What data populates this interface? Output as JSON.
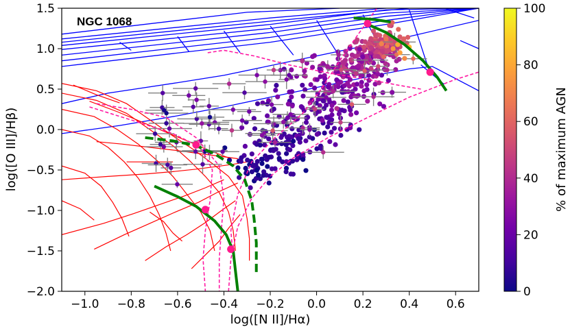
{
  "chart_data": {
    "type": "scatter",
    "annotation": "NGC 1068",
    "xlabel": "log([N II]/Hα)",
    "ylabel": "log([O III]/Hβ)",
    "xlim": [
      -1.1,
      0.7
    ],
    "ylim": [
      -2.0,
      1.5
    ],
    "xticks": [
      -1.0,
      -0.8,
      -0.6,
      -0.4,
      -0.2,
      0.0,
      0.2,
      0.4,
      0.6
    ],
    "xtick_labels": [
      "−1.0",
      "−0.8",
      "−0.6",
      "−0.4",
      "−0.2",
      "0.0",
      "0.2",
      "0.4",
      "0.6"
    ],
    "yticks": [
      -2.0,
      -1.5,
      -1.0,
      -0.5,
      0.0,
      0.5,
      1.0,
      1.5
    ],
    "ytick_labels": [
      "−2.0",
      "−1.5",
      "−1.0",
      "−0.5",
      "0.0",
      "0.5",
      "1.0",
      "1.5"
    ],
    "colorbar": {
      "label": "% of maximum AGN",
      "range": [
        0,
        100
      ],
      "ticks": [
        0,
        20,
        40,
        60,
        80,
        100
      ],
      "tick_labels": [
        "0",
        "20",
        "40",
        "60",
        "80",
        "100"
      ],
      "colormap": "plasma",
      "stops": [
        "#0d0887",
        "#46039f",
        "#7201a8",
        "#9c179e",
        "#bd3786",
        "#d8576b",
        "#ed7953",
        "#fb9f3a",
        "#fdca26",
        "#f0f921"
      ]
    },
    "agn_grid": {
      "color": "#0000ff",
      "long_lines": [
        [
          [
            -1.1,
            0.78
          ],
          [
            -0.2,
            1.08
          ],
          [
            0.3,
            1.3
          ],
          [
            0.7,
            1.5
          ]
        ],
        [
          [
            -1.1,
            0.85
          ],
          [
            -0.2,
            1.14
          ],
          [
            0.3,
            1.35
          ],
          [
            0.7,
            1.5
          ]
        ],
        [
          [
            -1.1,
            0.92
          ],
          [
            -0.2,
            1.2
          ],
          [
            0.3,
            1.4
          ],
          [
            0.7,
            1.5
          ]
        ],
        [
          [
            -1.1,
            0.99
          ],
          [
            -0.2,
            1.25
          ],
          [
            0.3,
            1.44
          ],
          [
            0.7,
            1.5
          ]
        ],
        [
          [
            -1.1,
            1.04
          ],
          [
            -0.2,
            1.3
          ],
          [
            0.3,
            1.48
          ],
          [
            0.7,
            1.5
          ]
        ],
        [
          [
            -1.1,
            1.08
          ],
          [
            -0.2,
            1.34
          ],
          [
            0.4,
            1.5
          ]
        ],
        [
          [
            -1.1,
            1.12
          ],
          [
            -0.2,
            1.38
          ],
          [
            0.3,
            1.5
          ]
        ],
        [
          [
            -1.1,
            1.18
          ],
          [
            -0.3,
            1.45
          ],
          [
            0.1,
            1.5
          ]
        ],
        [
          [
            -1.1,
            0.32
          ],
          [
            -0.9,
            0.45
          ],
          [
            -0.6,
            0.58
          ],
          [
            -0.4,
            0.67
          ],
          [
            -0.2,
            0.79
          ],
          [
            0.0,
            0.91
          ],
          [
            0.2,
            1.03
          ],
          [
            0.4,
            1.15
          ],
          [
            0.7,
            1.35
          ]
        ],
        [
          [
            -1.1,
            -0.05
          ],
          [
            -0.85,
            0.05
          ],
          [
            -0.6,
            0.17
          ],
          [
            -0.4,
            0.28
          ],
          [
            -0.2,
            0.4
          ],
          [
            0.0,
            0.52
          ],
          [
            0.2,
            0.64
          ],
          [
            0.4,
            0.75
          ],
          [
            0.5,
            0.78
          ],
          [
            0.7,
            0.48
          ]
        ]
      ],
      "cross_lines": [
        [
          [
            -0.85,
            1.08
          ],
          [
            -0.8,
            0.98
          ]
        ],
        [
          [
            -0.6,
            1.15
          ],
          [
            -0.55,
            0.96
          ]
        ],
        [
          [
            -0.4,
            1.22
          ],
          [
            -0.33,
            0.95
          ]
        ],
        [
          [
            -0.2,
            1.28
          ],
          [
            -0.1,
            0.92
          ]
        ],
        [
          [
            0.0,
            1.35
          ],
          [
            0.1,
            0.9
          ]
        ],
        [
          [
            0.2,
            1.42
          ],
          [
            0.3,
            0.88
          ]
        ],
        [
          [
            0.4,
            1.48
          ],
          [
            0.48,
            0.78
          ]
        ],
        [
          [
            0.55,
            1.5
          ],
          [
            0.68,
            1.38
          ]
        ],
        [
          [
            0.45,
            0.8
          ],
          [
            0.55,
            0.56
          ]
        ],
        [
          [
            0.62,
            1.1
          ],
          [
            0.7,
            1.0
          ]
        ]
      ]
    },
    "sf_grid": {
      "color": "#ff0000",
      "curves": [
        [
          [
            -1.1,
            0.57
          ],
          [
            -0.95,
            0.48
          ],
          [
            -0.82,
            0.32
          ],
          [
            -0.72,
            0.12
          ],
          [
            -0.62,
            -0.08
          ],
          [
            -0.53,
            -0.25
          ],
          [
            -0.45,
            -0.42
          ],
          [
            -0.38,
            -0.58
          ],
          [
            -0.32,
            -0.82
          ],
          [
            -0.3,
            -1.1
          ],
          [
            -0.29,
            -1.35
          ],
          [
            -0.29,
            -1.62
          ]
        ],
        [
          [
            -1.1,
            0.45
          ],
          [
            -0.95,
            0.36
          ],
          [
            -0.82,
            0.2
          ],
          [
            -0.72,
            0.0
          ],
          [
            -0.62,
            -0.2
          ],
          [
            -0.55,
            -0.38
          ],
          [
            -0.48,
            -0.58
          ],
          [
            -0.42,
            -0.78
          ],
          [
            -0.38,
            -1.02
          ],
          [
            -0.36,
            -1.25
          ],
          [
            -0.35,
            -1.5
          ]
        ],
        [
          [
            -1.1,
            0.25
          ],
          [
            -0.96,
            0.16
          ],
          [
            -0.86,
            0.0
          ],
          [
            -0.77,
            -0.18
          ],
          [
            -0.69,
            -0.38
          ],
          [
            -0.62,
            -0.58
          ],
          [
            -0.56,
            -0.8
          ],
          [
            -0.5,
            -1.02
          ],
          [
            -0.46,
            -1.25
          ],
          [
            -0.44,
            -1.5
          ]
        ],
        [
          [
            -1.1,
            0.0
          ],
          [
            -0.98,
            -0.08
          ],
          [
            -0.9,
            -0.22
          ],
          [
            -0.83,
            -0.4
          ],
          [
            -0.77,
            -0.6
          ],
          [
            -0.72,
            -0.82
          ],
          [
            -0.68,
            -1.05
          ],
          [
            -0.65,
            -1.28
          ],
          [
            -0.63,
            -1.5
          ]
        ],
        [
          [
            -1.1,
            -0.45
          ],
          [
            -1.0,
            -0.54
          ],
          [
            -0.93,
            -0.7
          ],
          [
            -0.88,
            -0.9
          ],
          [
            -0.84,
            -1.1
          ],
          [
            -0.81,
            -1.32
          ]
        ],
        [
          [
            -1.1,
            -0.88
          ],
          [
            -1.02,
            -0.98
          ],
          [
            -0.96,
            -1.12
          ]
        ]
      ],
      "spokes": [
        [
          [
            -1.1,
            -0.62
          ],
          [
            -0.9,
            -0.58
          ],
          [
            -0.74,
            -0.55
          ],
          [
            -0.62,
            -0.52
          ],
          [
            -0.52,
            -0.49
          ],
          [
            -0.44,
            -0.46
          ],
          [
            -0.36,
            -0.43
          ],
          [
            -0.3,
            -0.4
          ]
        ],
        [
          [
            -1.1,
            -1.3
          ],
          [
            -0.92,
            -1.16
          ],
          [
            -0.79,
            -1.04
          ],
          [
            -0.68,
            -0.93
          ],
          [
            -0.57,
            -0.82
          ],
          [
            -0.48,
            -0.72
          ],
          [
            -0.4,
            -0.62
          ]
        ],
        [
          [
            -0.96,
            -1.48
          ],
          [
            -0.83,
            -1.3
          ],
          [
            -0.72,
            -1.16
          ],
          [
            -0.61,
            -1.02
          ],
          [
            -0.51,
            -0.9
          ],
          [
            -0.43,
            -0.78
          ],
          [
            -0.34,
            -0.66
          ]
        ],
        [
          [
            -0.74,
            -1.62
          ],
          [
            -0.65,
            -1.45
          ],
          [
            -0.56,
            -1.3
          ],
          [
            -0.48,
            -1.15
          ],
          [
            -0.41,
            -1.0
          ],
          [
            -0.35,
            -0.88
          ]
        ],
        [
          [
            -0.54,
            -1.72
          ],
          [
            -0.48,
            -1.55
          ],
          [
            -0.42,
            -1.38
          ],
          [
            -0.38,
            -1.22
          ],
          [
            -0.33,
            -1.05
          ]
        ],
        [
          [
            -0.95,
            -0.15
          ],
          [
            -0.84,
            -0.18
          ],
          [
            -0.72,
            -0.22
          ],
          [
            -0.6,
            -0.26
          ],
          [
            -0.5,
            -0.3
          ],
          [
            -0.42,
            -0.33
          ],
          [
            -0.34,
            -0.36
          ]
        ],
        [
          [
            -0.98,
            0.35
          ],
          [
            -0.86,
            0.22
          ],
          [
            -0.76,
            0.1
          ],
          [
            -0.66,
            -0.02
          ],
          [
            -0.56,
            -0.14
          ],
          [
            -0.47,
            -0.25
          ],
          [
            -0.38,
            -0.35
          ]
        ],
        [
          [
            -0.82,
            -0.4
          ],
          [
            -0.72,
            -0.4
          ],
          [
            -0.62,
            -0.4
          ]
        ],
        [
          [
            -0.72,
            -1.02
          ],
          [
            -0.66,
            -1.14
          ],
          [
            -0.62,
            -1.28
          ],
          [
            -0.58,
            -1.38
          ]
        ],
        [
          [
            -1.05,
            0.55
          ],
          [
            -0.95,
            0.43
          ],
          [
            -0.85,
            0.33
          ]
        ]
      ]
    },
    "green_tracks": [
      {
        "style": "solid",
        "points": [
          [
            0.16,
            1.38
          ],
          [
            0.25,
            1.36
          ],
          [
            0.32,
            1.33
          ]
        ]
      },
      {
        "style": "solid",
        "points": [
          [
            0.22,
            1.3
          ],
          [
            0.3,
            1.2
          ],
          [
            0.38,
            1.05
          ],
          [
            0.46,
            0.85
          ],
          [
            0.52,
            0.65
          ],
          [
            0.56,
            0.48
          ]
        ]
      },
      {
        "style": "dashed",
        "points": [
          [
            -0.74,
            -0.1
          ],
          [
            -0.62,
            -0.14
          ],
          [
            -0.52,
            -0.2
          ],
          [
            -0.44,
            -0.3
          ],
          [
            -0.36,
            -0.45
          ],
          [
            -0.31,
            -0.62
          ],
          [
            -0.28,
            -0.88
          ],
          [
            -0.27,
            -1.1
          ],
          [
            -0.26,
            -1.4
          ],
          [
            -0.26,
            -1.8
          ]
        ]
      },
      {
        "style": "solid",
        "points": [
          [
            -0.7,
            -0.7
          ],
          [
            -0.6,
            -0.83
          ],
          [
            -0.52,
            -0.95
          ],
          [
            -0.44,
            -1.13
          ],
          [
            -0.39,
            -1.3
          ],
          [
            -0.36,
            -1.5
          ],
          [
            -0.35,
            -1.75
          ],
          [
            -0.34,
            -2.0
          ]
        ]
      }
    ],
    "magenta_curves": [
      [
        [
          -0.98,
          0.28
        ],
        [
          -0.78,
          0.1
        ],
        [
          -0.62,
          -0.05
        ],
        [
          -0.5,
          -0.22
        ],
        [
          -0.45,
          -0.5
        ],
        [
          -0.46,
          -0.88
        ],
        [
          -0.48,
          -1.25
        ],
        [
          -0.49,
          -1.6
        ],
        [
          -0.48,
          -2.0
        ]
      ],
      [
        [
          -0.95,
          0.32
        ],
        [
          -0.8,
          0.25
        ],
        [
          -0.65,
          0.15
        ],
        [
          -0.52,
          -0.1
        ],
        [
          -0.42,
          -0.45
        ],
        [
          -0.4,
          -0.85
        ],
        [
          -0.41,
          -1.2
        ],
        [
          -0.42,
          -1.6
        ],
        [
          -0.42,
          -2.0
        ]
      ],
      [
        [
          -0.36,
          -1.6
        ],
        [
          -0.37,
          -1.25
        ],
        [
          -0.34,
          -0.8
        ],
        [
          -0.28,
          -0.4
        ],
        [
          -0.18,
          -0.1
        ],
        [
          -0.06,
          0.2
        ],
        [
          0.02,
          0.5
        ],
        [
          0.1,
          0.85
        ],
        [
          0.18,
          1.18
        ],
        [
          0.26,
          1.5
        ]
      ],
      [
        [
          -0.38,
          -2.0
        ],
        [
          -0.37,
          -1.6
        ],
        [
          -0.34,
          -1.2
        ],
        [
          -0.28,
          -0.85
        ],
        [
          -0.2,
          -0.58
        ],
        [
          -0.1,
          -0.35
        ],
        [
          0.05,
          -0.1
        ],
        [
          0.2,
          0.12
        ],
        [
          0.4,
          0.4
        ],
        [
          0.6,
          0.62
        ],
        [
          0.7,
          0.71
        ]
      ],
      [
        [
          -0.47,
          0.95
        ],
        [
          -0.4,
          0.98
        ],
        [
          -0.27,
          0.91
        ],
        [
          -0.12,
          0.8
        ],
        [
          0.05,
          0.7
        ],
        [
          0.22,
          0.62
        ],
        [
          0.35,
          0.55
        ],
        [
          0.45,
          0.5
        ]
      ]
    ],
    "pink_markers": [
      {
        "x": 0.22,
        "y": 1.31
      },
      {
        "x": 0.49,
        "y": 0.71
      },
      {
        "x": -0.52,
        "y": -0.19
      },
      {
        "x": -0.48,
        "y": -0.99
      },
      {
        "x": -0.37,
        "y": -1.48
      }
    ],
    "error_point_count": 78,
    "dense_point_count": 560,
    "hull": [
      [
        -0.3,
        -0.55
      ],
      [
        -0.2,
        -0.28
      ],
      [
        -0.08,
        0.1
      ],
      [
        0.04,
        0.45
      ],
      [
        0.14,
        0.78
      ],
      [
        0.22,
        1.05
      ],
      [
        0.3,
        1.15
      ],
      [
        0.34,
        0.8
      ],
      [
        0.3,
        0.45
      ],
      [
        0.2,
        0.12
      ],
      [
        0.08,
        -0.1
      ],
      [
        -0.04,
        -0.26
      ],
      [
        -0.16,
        -0.45
      ],
      [
        -0.24,
        -0.6
      ],
      [
        -0.3,
        -0.7
      ]
    ],
    "seed": 1068
  }
}
